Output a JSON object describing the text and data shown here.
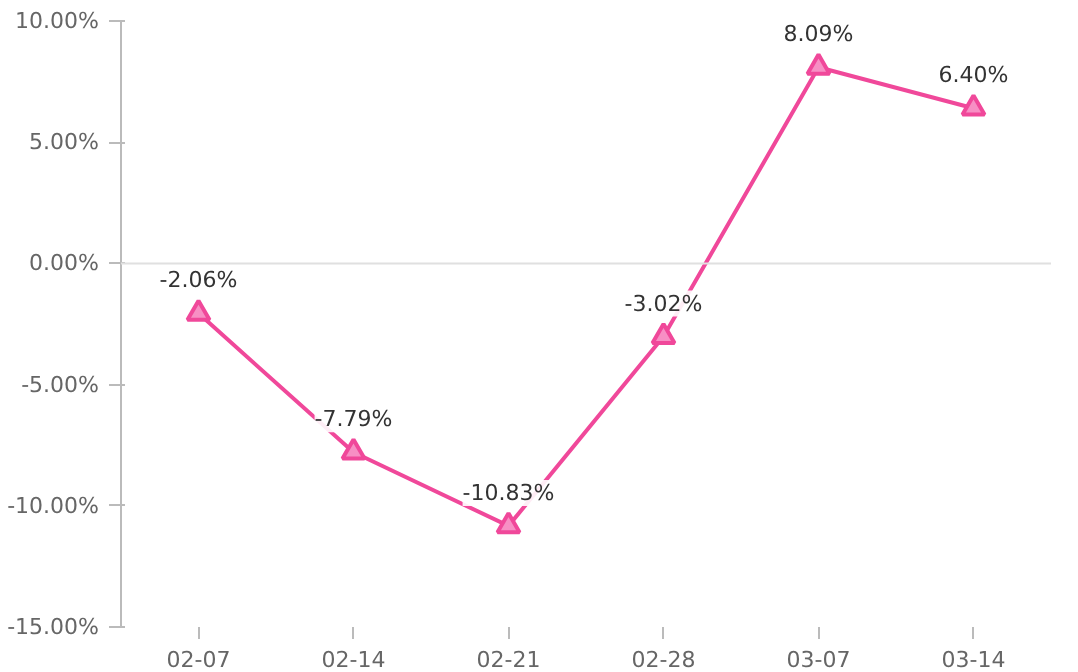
{
  "chart_data": {
    "type": "line",
    "categories": [
      "02-07",
      "02-14",
      "02-21",
      "02-28",
      "03-07",
      "03-14"
    ],
    "series": [
      {
        "color": "#f0489a",
        "values": [
          -2.06,
          -7.79,
          -10.83,
          -3.02,
          8.09,
          6.4
        ],
        "value_labels": [
          "-2.06%",
          "-7.79%",
          "-10.83%",
          "-3.02%",
          "8.09%",
          "6.40%"
        ]
      }
    ],
    "ylim": [
      -15,
      10
    ],
    "yticks": [
      {
        "value": -15,
        "label": "-15.00%"
      },
      {
        "value": -10,
        "label": "-10.00%"
      },
      {
        "value": -5,
        "label": "-5.00%"
      },
      {
        "value": 0,
        "label": "0.00%"
      },
      {
        "value": 5,
        "label": "5.00%"
      },
      {
        "value": 10,
        "label": "10.00%"
      }
    ],
    "ref_lines": [
      {
        "axis": "y",
        "value": 0,
        "color": "#e0e0e0"
      }
    ],
    "grid": false,
    "marker": "triangle",
    "line_style": "solid"
  }
}
